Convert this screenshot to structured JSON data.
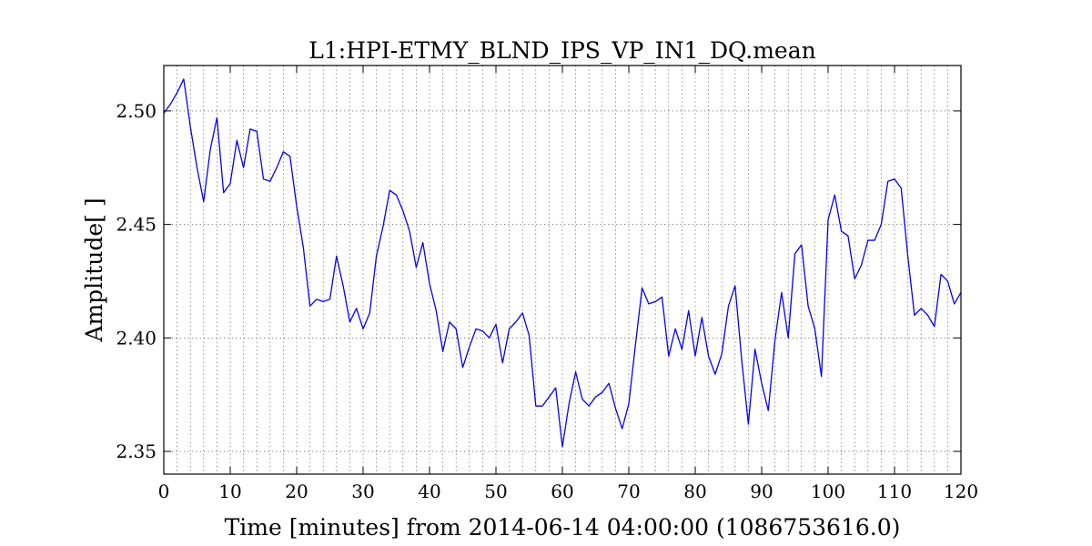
{
  "chart_data": {
    "type": "line",
    "title": "L1:HPI-ETMY_BLND_IPS_VP_IN1_DQ.mean",
    "xlabel": "Time [minutes] from 2014-06-14 04:00:00 (1086753616.0)",
    "ylabel": "Amplitude[ ]",
    "xlim": [
      0,
      120
    ],
    "ylim": [
      2.34,
      2.52
    ],
    "xticks": [
      0,
      10,
      20,
      30,
      40,
      50,
      60,
      70,
      80,
      90,
      100,
      110,
      120
    ],
    "xtick_labels": [
      "0",
      "10",
      "20",
      "30",
      "40",
      "50",
      "60",
      "70",
      "80",
      "90",
      "100",
      "110",
      "120"
    ],
    "yticks": [
      2.35,
      2.4,
      2.45,
      2.5
    ],
    "ytick_labels": [
      "2.35",
      "2.40",
      "2.45",
      "2.50"
    ],
    "x_minor_grid_step": 2,
    "grid": true,
    "line_color": "#0000ff",
    "series": [
      {
        "x": [
          0,
          1,
          2,
          3,
          4,
          5,
          6,
          7,
          8,
          9,
          10,
          11,
          12,
          13,
          14,
          15,
          16,
          17,
          18,
          19,
          20,
          21,
          22,
          23,
          24,
          25,
          26,
          27,
          28,
          29,
          30,
          31,
          32,
          33,
          34,
          35,
          36,
          37,
          38,
          39,
          40,
          41,
          42,
          43,
          44,
          45,
          46,
          47,
          48,
          49,
          50,
          51,
          52,
          53,
          54,
          55,
          56,
          57,
          58,
          59,
          60,
          61,
          62,
          63,
          64,
          65,
          66,
          67,
          68,
          69,
          70,
          71,
          72,
          73,
          74,
          75,
          76,
          77,
          78,
          79,
          80,
          81,
          82,
          83,
          84,
          85,
          86,
          87,
          88,
          89,
          90,
          91,
          92,
          93,
          94,
          95,
          96,
          97,
          98,
          99,
          100,
          101,
          102,
          103,
          104,
          105,
          106,
          107,
          108,
          109,
          110,
          111,
          112,
          113,
          114,
          115,
          116,
          117,
          118,
          119,
          120
        ],
        "values": [
          2.499,
          2.503,
          2.508,
          2.514,
          2.493,
          2.475,
          2.46,
          2.483,
          2.497,
          2.464,
          2.468,
          2.487,
          2.475,
          2.492,
          2.491,
          2.47,
          2.469,
          2.475,
          2.482,
          2.48,
          2.458,
          2.44,
          2.414,
          2.417,
          2.416,
          2.417,
          2.436,
          2.423,
          2.407,
          2.413,
          2.404,
          2.411,
          2.436,
          2.449,
          2.465,
          2.463,
          2.456,
          2.447,
          2.431,
          2.442,
          2.424,
          2.412,
          2.394,
          2.407,
          2.404,
          2.387,
          2.396,
          2.404,
          2.403,
          2.4,
          2.406,
          2.389,
          2.404,
          2.407,
          2.411,
          2.401,
          2.37,
          2.37,
          2.374,
          2.378,
          2.352,
          2.371,
          2.385,
          2.373,
          2.37,
          2.374,
          2.376,
          2.38,
          2.369,
          2.36,
          2.371,
          2.397,
          2.422,
          2.415,
          2.416,
          2.418,
          2.392,
          2.404,
          2.395,
          2.412,
          2.392,
          2.409,
          2.392,
          2.384,
          2.393,
          2.414,
          2.423,
          2.39,
          2.362,
          2.395,
          2.38,
          2.368,
          2.399,
          2.42,
          2.4,
          2.437,
          2.441,
          2.414,
          2.404,
          2.383,
          2.452,
          2.463,
          2.447,
          2.445,
          2.426,
          2.432,
          2.443,
          2.443,
          2.45,
          2.469,
          2.47,
          2.466,
          2.436,
          2.41,
          2.413,
          2.41,
          2.405,
          2.428,
          2.425,
          2.415,
          2.42
        ]
      }
    ]
  }
}
